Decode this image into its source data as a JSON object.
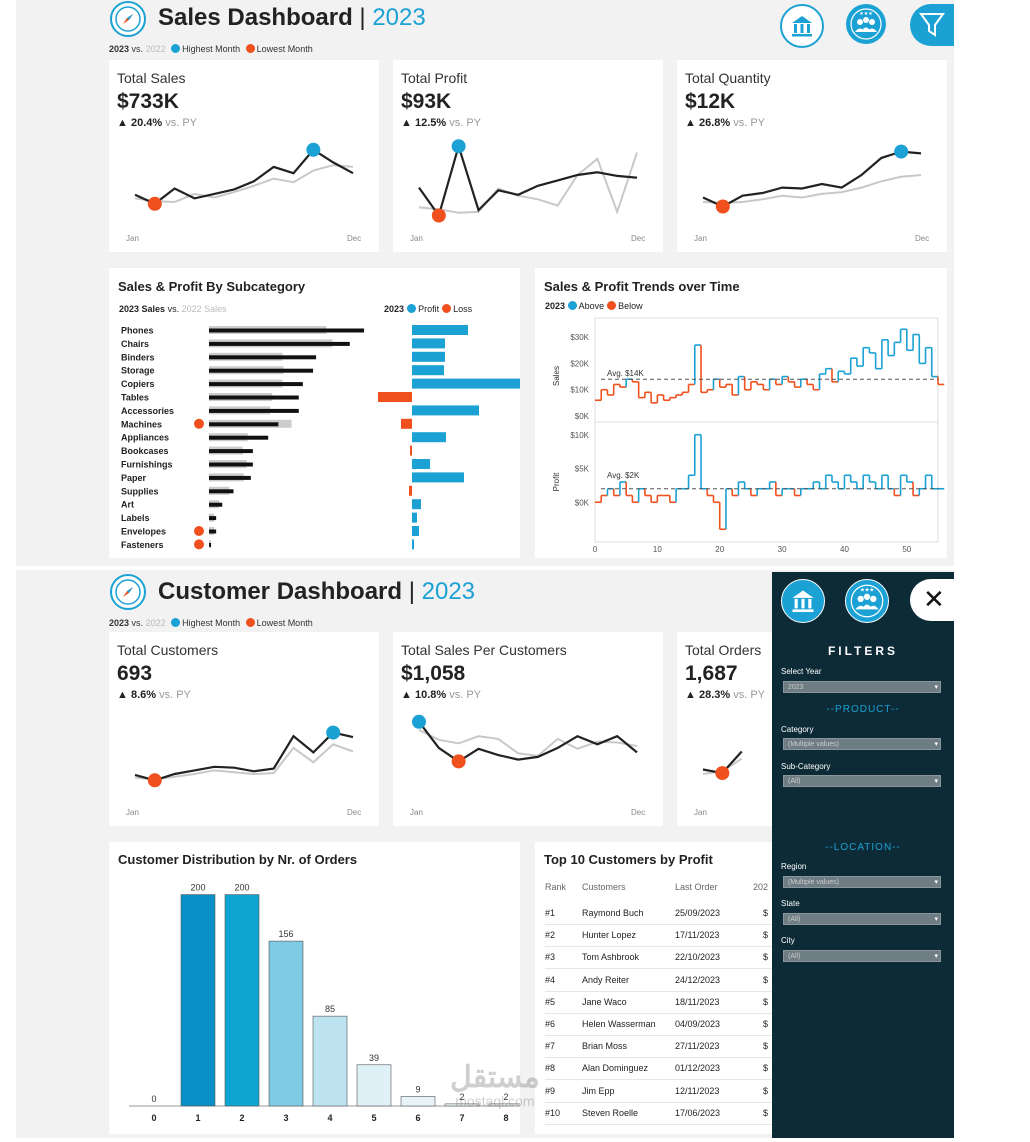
{
  "sales_dashboard": {
    "title": "Sales Dashboard",
    "separator": "|",
    "year": "2023",
    "legend": {
      "cur": "2023",
      "vs": "vs.",
      "prev": "2022",
      "high": "Highest Month",
      "low": "Lowest Month"
    },
    "kpis": [
      {
        "title": "Total Sales",
        "value": "$733K",
        "change": "20.4%",
        "vs": "vs. PY"
      },
      {
        "title": "Total Profit",
        "value": "$93K",
        "change": "12.5%",
        "vs": "vs. PY"
      },
      {
        "title": "Total Quantity",
        "value": "$12K",
        "change": "26.8%",
        "vs": "vs. PY"
      }
    ],
    "month_start": "Jan",
    "month_end": "Dec"
  },
  "subcategory": {
    "title": "Sales & Profit By Subcategory",
    "legend_left": {
      "cur": "2023 Sales",
      "vs": "vs.",
      "prev": "2022 Sales"
    },
    "legend_right": {
      "year": "2023",
      "profit": "Profit",
      "loss": "Loss"
    }
  },
  "trends": {
    "title": "Sales & Profit Trends over Time",
    "legend": {
      "year": "2023",
      "above": "Above",
      "below": "Below"
    },
    "sales_label": "Sales",
    "profit_label": "Profit",
    "sales_ticks": [
      "$30K",
      "$20K",
      "$10K",
      "$0K"
    ],
    "profit_ticks": [
      "$10K",
      "$5K",
      "$0K"
    ],
    "x_ticks": [
      "0",
      "10",
      "20",
      "30",
      "40",
      "50"
    ],
    "avg_sales": "Avg. $14K",
    "avg_profit": "Avg. $2K"
  },
  "customer_dashboard": {
    "title": "Customer Dashboard",
    "separator": "|",
    "year": "2023",
    "legend": {
      "cur": "2023",
      "vs": "vs.",
      "prev": "2022",
      "high": "Highest Month",
      "low": "Lowest Month"
    },
    "kpis": [
      {
        "title": "Total Customers",
        "value": "693",
        "change": "8.6%",
        "vs": "vs. PY"
      },
      {
        "title": "Total Sales Per Customers",
        "value": "$1,058",
        "change": "10.8%",
        "vs": "vs. PY"
      },
      {
        "title": "Total Orders",
        "value": "1,687",
        "change": "28.3%",
        "vs": "vs. PY"
      }
    ]
  },
  "distribution": {
    "title": "Customer Distribution by Nr. of Orders"
  },
  "top_customers": {
    "title": "Top 10 Customers by Profit",
    "headers": {
      "rank": "Rank",
      "customer": "Customers",
      "last_order": "Last Order",
      "extra": "202"
    },
    "rows": [
      {
        "rank": "#1",
        "customer": "Raymond Buch",
        "last_order": "25/09/2023",
        "extra": "$"
      },
      {
        "rank": "#2",
        "customer": "Hunter Lopez",
        "last_order": "17/11/2023",
        "extra": "$"
      },
      {
        "rank": "#3",
        "customer": "Tom Ashbrook",
        "last_order": "22/10/2023",
        "extra": "$"
      },
      {
        "rank": "#4",
        "customer": "Andy Reiter",
        "last_order": "24/12/2023",
        "extra": "$"
      },
      {
        "rank": "#5",
        "customer": "Jane Waco",
        "last_order": "18/11/2023",
        "extra": "$"
      },
      {
        "rank": "#6",
        "customer": "Helen Wasserman",
        "last_order": "04/09/2023",
        "extra": "$"
      },
      {
        "rank": "#7",
        "customer": "Brian Moss",
        "last_order": "27/11/2023",
        "extra": "$"
      },
      {
        "rank": "#8",
        "customer": "Alan Dominguez",
        "last_order": "01/12/2023",
        "extra": "$"
      },
      {
        "rank": "#9",
        "customer": "Jim Epp",
        "last_order": "12/11/2023",
        "extra": "$"
      },
      {
        "rank": "#10",
        "customer": "Steven Roelle",
        "last_order": "17/06/2023",
        "extra": "$"
      }
    ]
  },
  "filters": {
    "title": "FILTERS",
    "select_year_label": "Select Year",
    "select_year_value": "2023",
    "product_section": "--PRODUCT--",
    "category_label": "Category",
    "category_value": "(Multiple values)",
    "subcategory_label": "Sub-Category",
    "subcategory_value": "(All)",
    "location_section": "--LOCATION--",
    "region_label": "Region",
    "region_value": "(Multiple values)",
    "state_label": "State",
    "state_value": "(All)",
    "city_label": "City",
    "city_value": "(All)",
    "close_label": "✕"
  },
  "watermark": {
    "arabic": "مستقل",
    "latin": "mostaql.com"
  },
  "colors": {
    "accent": "#1ba1d4",
    "low": "#f0501e",
    "line_cur": "#222222",
    "line_prev": "#c8c8c8",
    "panel": "#0d2b37"
  },
  "chart_data": [
    {
      "type": "line",
      "title": "Total Sales",
      "categories": [
        "Jan",
        "Feb",
        "Mar",
        "Apr",
        "May",
        "Jun",
        "Jul",
        "Aug",
        "Sep",
        "Oct",
        "Nov",
        "Dec"
      ],
      "series": [
        {
          "values": [
            38,
            28,
            45,
            34,
            39,
            44,
            53,
            69,
            62,
            88,
            74,
            62
          ]
        },
        {
          "values": [
            34,
            31,
            30,
            39,
            35,
            41,
            48,
            56,
            52,
            65,
            71,
            69
          ]
        }
      ],
      "ylim": [
        0,
        100
      ]
    },
    {
      "type": "line",
      "title": "Total Profit",
      "categories": [
        "Jan",
        "Feb",
        "Mar",
        "Apr",
        "May",
        "Jun",
        "Jul",
        "Aug",
        "Sep",
        "Oct",
        "Nov",
        "Dec"
      ],
      "series": [
        {
          "values": [
            46,
            15,
            92,
            21,
            43,
            38,
            48,
            54,
            60,
            63,
            59,
            57
          ]
        },
        {
          "values": [
            24,
            22,
            18,
            19,
            45,
            37,
            33,
            26,
            60,
            78,
            19,
            85
          ]
        }
      ],
      "ylim": [
        0,
        100
      ]
    },
    {
      "type": "line",
      "title": "Total Quantity",
      "categories": [
        "Jan",
        "Feb",
        "Mar",
        "Apr",
        "May",
        "Jun",
        "Jul",
        "Aug",
        "Sep",
        "Oct",
        "Nov",
        "Dec"
      ],
      "series": [
        {
          "values": [
            35,
            25,
            37,
            40,
            46,
            45,
            50,
            46,
            60,
            79,
            86,
            84
          ]
        },
        {
          "values": [
            30,
            29,
            30,
            33,
            37,
            35,
            39,
            41,
            46,
            53,
            58,
            60
          ]
        }
      ],
      "ylim": [
        0,
        100
      ]
    },
    {
      "type": "bar",
      "title": "Sales & Profit By Subcategory",
      "categories": [
        "Phones",
        "Chairs",
        "Binders",
        "Storage",
        "Copiers",
        "Tables",
        "Accessories",
        "Machines",
        "Appliances",
        "Bookcases",
        "Furnishings",
        "Paper",
        "Supplies",
        "Art",
        "Labels",
        "Envelopes",
        "Fasteners"
      ],
      "series": [
        {
          "name": "2023 Sales",
          "values": [
            152,
            138,
            105,
            102,
            92,
            88,
            88,
            68,
            58,
            43,
            43,
            41,
            24,
            13,
            7,
            7,
            2
          ]
        },
        {
          "name": "2022 Sales",
          "values": [
            115,
            121,
            72,
            73,
            72,
            62,
            60,
            81,
            38,
            33,
            37,
            34,
            20,
            10,
            5,
            5,
            2
          ]
        },
        {
          "name": "Profit",
          "values": [
            56,
            33,
            33,
            32,
            108,
            -34,
            67,
            -11,
            34,
            -2,
            18,
            52,
            -3,
            9,
            5,
            7,
            2
          ]
        }
      ]
    },
    {
      "type": "line",
      "title": "Sales & Profit Trends over Time",
      "x_range": [
        0,
        55
      ],
      "series": [
        {
          "name": "Sales",
          "ylim": [
            0,
            35
          ],
          "values": [
            6,
            10,
            8,
            12,
            11,
            14,
            13,
            7,
            9,
            5,
            8,
            6,
            7,
            8,
            9,
            12,
            27,
            9,
            10,
            14,
            11,
            12,
            8,
            15,
            10,
            13,
            12,
            10,
            14,
            12,
            15,
            13,
            11,
            14,
            12,
            10,
            16,
            18,
            13,
            17,
            16,
            22,
            19,
            26,
            24,
            18,
            29,
            23,
            28,
            33,
            25,
            31,
            20,
            26,
            15,
            12
          ]
        },
        {
          "name": "Profit",
          "ylim": [
            -5,
            11
          ],
          "values": [
            0,
            1,
            2,
            1,
            3,
            1,
            0,
            2,
            1,
            0,
            1,
            1,
            0,
            2,
            2,
            4,
            10,
            2,
            1,
            0,
            -4,
            2,
            1,
            3,
            2,
            1,
            2,
            2,
            3,
            1,
            2,
            2,
            1,
            2,
            2,
            3,
            2,
            4,
            3,
            2,
            4,
            3,
            2,
            4,
            3,
            2,
            4,
            2,
            1,
            4,
            3,
            1,
            2,
            4,
            2,
            2
          ]
        }
      ],
      "avg_sales": 14,
      "avg_profit": 2
    },
    {
      "type": "line",
      "title": "Total Customers",
      "categories": [
        "Jan",
        "Feb",
        "Mar",
        "Apr",
        "May",
        "Jun",
        "Jul",
        "Aug",
        "Sep",
        "Oct",
        "Nov",
        "Dec"
      ],
      "series": [
        {
          "values": [
            29,
            23,
            30,
            34,
            38,
            37,
            33,
            36,
            72,
            54,
            76,
            71
          ]
        },
        {
          "values": [
            26,
            24,
            27,
            30,
            34,
            32,
            30,
            31,
            59,
            43,
            63,
            55
          ]
        }
      ],
      "ylim": [
        0,
        100
      ]
    },
    {
      "type": "line",
      "title": "Total Sales Per Customers",
      "categories": [
        "Jan",
        "Feb",
        "Mar",
        "Apr",
        "May",
        "Jun",
        "Jul",
        "Aug",
        "Sep",
        "Oct",
        "Nov",
        "Dec"
      ],
      "series": [
        {
          "values": [
            88,
            59,
            44,
            58,
            51,
            46,
            49,
            59,
            72,
            63,
            72,
            54
          ]
        },
        {
          "values": [
            79,
            68,
            64,
            72,
            69,
            53,
            50,
            69,
            58,
            66,
            65,
            61
          ]
        }
      ],
      "ylim": [
        0,
        100
      ]
    },
    {
      "type": "line",
      "title": "Total Orders",
      "categories": [
        "Jan",
        "Feb",
        "Mar"
      ],
      "series": [
        {
          "values": [
            35,
            31,
            55
          ]
        },
        {
          "values": [
            30,
            33,
            47
          ]
        }
      ],
      "ylim": [
        0,
        100
      ]
    },
    {
      "type": "bar",
      "title": "Customer Distribution by Nr. of Orders",
      "categories": [
        "0",
        "1",
        "2",
        "3",
        "4",
        "5",
        "6",
        "7",
        "8"
      ],
      "values": [
        0,
        200,
        200,
        156,
        85,
        39,
        9,
        2,
        2
      ],
      "ylim": [
        0,
        210
      ]
    }
  ]
}
